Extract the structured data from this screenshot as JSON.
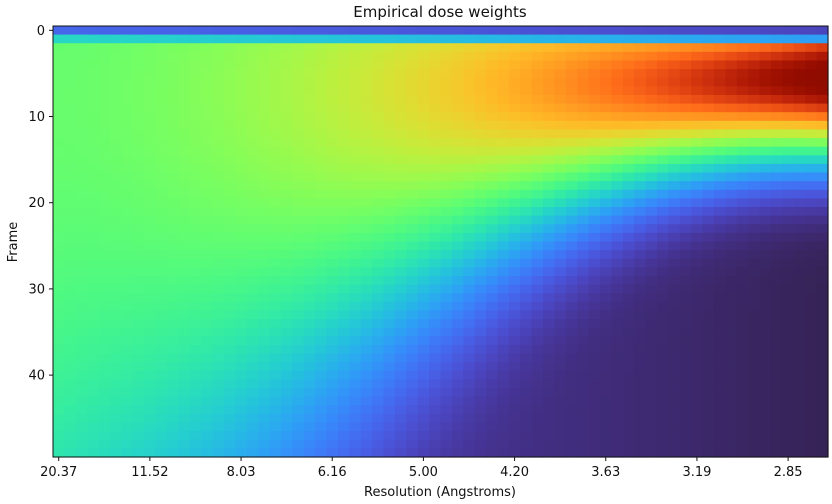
{
  "chart_data": {
    "type": "heatmap",
    "title": "Empirical dose weights",
    "xlabel": "Resolution (Angstroms)",
    "ylabel": "Frame",
    "colormap": "turbo",
    "grid": false,
    "n_frames": 50,
    "n_resolution_bins": 68,
    "ylim": [
      49.5,
      -0.5
    ],
    "x_tick_labels": [
      "20.37",
      "11.52",
      "8.03",
      "6.16",
      "5.00",
      "4.20",
      "3.63",
      "3.19",
      "2.85"
    ],
    "y_tick_labels": [
      "0",
      "10",
      "20",
      "30",
      "40"
    ],
    "y_tick_values": [
      0,
      10,
      20,
      30,
      40
    ],
    "value_range": [
      0,
      1
    ]
  }
}
